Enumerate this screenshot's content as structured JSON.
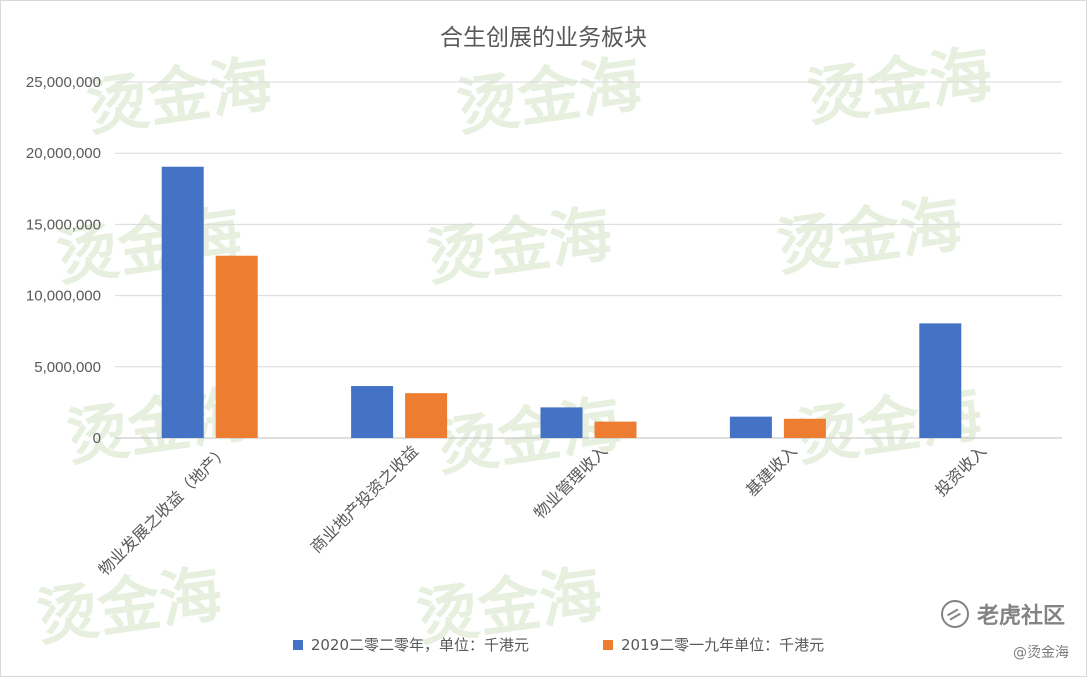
{
  "chart_data": {
    "type": "bar",
    "title": "合生创展的业务板块",
    "categories": [
      "物业发展之收益（地产）",
      "商业地产投资之收益",
      "物业管理收入",
      "基建收入",
      "投资收入"
    ],
    "series": [
      {
        "name": "2020二零二零年，单位：千港元",
        "color": "#4472c4",
        "values": [
          19050000,
          3650000,
          2150000,
          1500000,
          8050000
        ]
      },
      {
        "name": "2019二零一九年单位：千港元",
        "color": "#ed7d31",
        "values": [
          12800000,
          3150000,
          1150000,
          1350000,
          null
        ]
      }
    ],
    "yticks": [
      "0",
      "5,000,000",
      "10,000,000",
      "15,000,000",
      "20,000,000",
      "25,000,000"
    ],
    "ylim": [
      0,
      25000000
    ],
    "grid": true,
    "legend_position": "bottom"
  },
  "watermark": {
    "platform": "老虎社区",
    "author": "@烫金海",
    "repeated_mark": "烫金海"
  }
}
